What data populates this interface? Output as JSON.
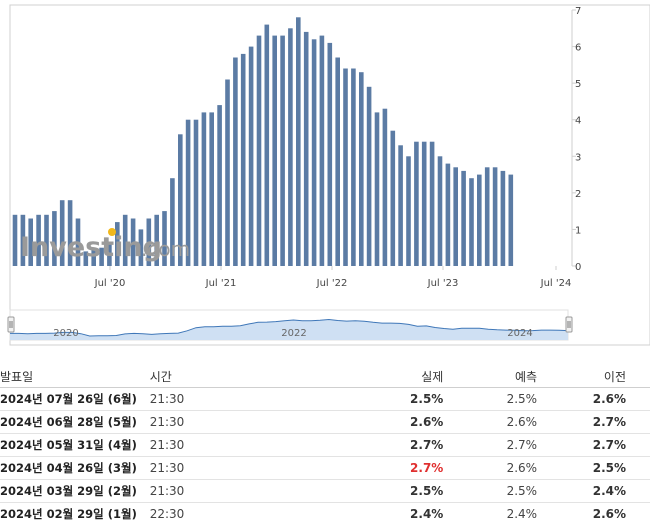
{
  "colors": {
    "bar": "#5b7ba4",
    "bar_faded": "#b8c6d8",
    "nav_fill": "#cfe0f3",
    "nav_line": "#3f77b8",
    "negative": "#e03030",
    "logo_grey": "#9a9a9a",
    "logo_dot": "#f1b81b"
  },
  "logo": {
    "text": "Investing",
    "suffix": ".com"
  },
  "chart_data": {
    "type": "bar",
    "x_tick_labels": [
      "Jul '20",
      "Jul '21",
      "Jul '22",
      "Jul '23",
      "Jul '24"
    ],
    "y_ticks": [
      0,
      1,
      2,
      3,
      4,
      5,
      6,
      7
    ],
    "ylim": [
      0,
      7
    ],
    "values": [
      1.4,
      1.4,
      1.3,
      1.4,
      1.4,
      1.5,
      1.8,
      1.8,
      1.3,
      0.4,
      0.5,
      0.5,
      0.6,
      1.2,
      1.4,
      1.3,
      1.0,
      1.3,
      1.4,
      1.5,
      2.4,
      3.6,
      4.0,
      4.0,
      4.2,
      4.2,
      4.4,
      5.1,
      5.7,
      5.8,
      6.0,
      6.3,
      6.6,
      6.3,
      6.3,
      6.5,
      6.8,
      6.4,
      6.2,
      6.3,
      6.1,
      5.7,
      5.4,
      5.4,
      5.3,
      4.9,
      4.2,
      4.3,
      3.7,
      3.3,
      3.0,
      3.4,
      3.4,
      3.4,
      3.0,
      2.8,
      2.7,
      2.6,
      2.4,
      2.5,
      2.7,
      2.7,
      2.6,
      2.5
    ],
    "navigator_labels": [
      "2020",
      "2022",
      "2024"
    ]
  },
  "table": {
    "headers": {
      "date": "발표일",
      "time": "시간",
      "actual": "실제",
      "forecast": "예측",
      "previous": "이전"
    },
    "rows": [
      {
        "date": "2024년 07월 26일 (6월)",
        "time": "21:30",
        "actual": "2.5%",
        "forecast": "2.5%",
        "previous": "2.6%",
        "negative": false
      },
      {
        "date": "2024년 06월 28일 (5월)",
        "time": "21:30",
        "actual": "2.6%",
        "forecast": "2.6%",
        "previous": "2.7%",
        "negative": false
      },
      {
        "date": "2024년 05월 31일 (4월)",
        "time": "21:30",
        "actual": "2.7%",
        "forecast": "2.7%",
        "previous": "2.7%",
        "negative": false
      },
      {
        "date": "2024년 04월 26일 (3월)",
        "time": "21:30",
        "actual": "2.7%",
        "forecast": "2.6%",
        "previous": "2.5%",
        "negative": true
      },
      {
        "date": "2024년 03월 29일 (2월)",
        "time": "21:30",
        "actual": "2.5%",
        "forecast": "2.5%",
        "previous": "2.4%",
        "negative": false
      },
      {
        "date": "2024년 02월 29일 (1월)",
        "time": "22:30",
        "actual": "2.4%",
        "forecast": "2.4%",
        "previous": "2.6%",
        "negative": false
      }
    ]
  }
}
